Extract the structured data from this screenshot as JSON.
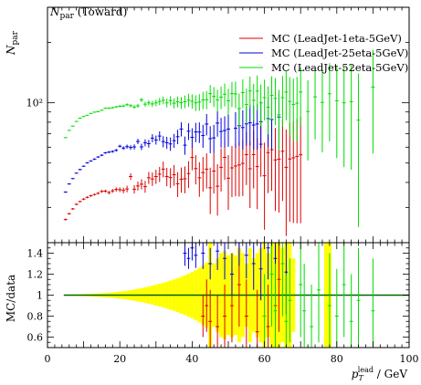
{
  "header": {
    "title_sym": "N",
    "title_sub": "par",
    "title_rest": " (Toward)"
  },
  "colors": {
    "mc1": "#dd0000",
    "mc2": "#0000dd",
    "mc3": "#00dd00",
    "band": "#ffff00",
    "unity": "#006600"
  },
  "chart_data": [
    {
      "type": "scatter",
      "panel": "main",
      "title": "N_par (Toward)",
      "ylabel": "N_par",
      "y_scale": "log",
      "ylim": [
        20,
        300
      ],
      "xlim": [
        0,
        100
      ],
      "y_tick_labels": [
        "10²"
      ],
      "y_major_ticks": [
        100
      ],
      "x": [
        5,
        6,
        7,
        8,
        9,
        10,
        11,
        12,
        13,
        14,
        15,
        16,
        17,
        18,
        19,
        20,
        21,
        22,
        23,
        24,
        25,
        26,
        27,
        28,
        29,
        30,
        31,
        32,
        33,
        34,
        35,
        36,
        37,
        38,
        39,
        40,
        41,
        42,
        43,
        44,
        45,
        46,
        47,
        48,
        49,
        50,
        51,
        52,
        53,
        54,
        55,
        56,
        57,
        58,
        59,
        60,
        61,
        62,
        63,
        64,
        65,
        66,
        67,
        68,
        69,
        70,
        72,
        74,
        76,
        78,
        80,
        82,
        84,
        86,
        90
      ],
      "series": [
        {
          "name": "MC (LeadJet-1eta-5GeV)",
          "color": "#dd0000",
          "values": [
            26.1,
            27.9,
            29.5,
            31.1,
            32.1,
            33.0,
            33.7,
            34.3,
            34.8,
            35.3,
            36.1,
            36.2,
            35.6,
            36.3,
            36.9,
            36.8,
            36.5,
            37.1,
            42.8,
            37.0,
            38.4,
            39.2,
            38.1,
            42.2,
            41.6,
            42.8,
            44.0,
            46.6,
            42.8,
            42.3,
            43.7,
            39.4,
            41.5,
            41.7,
            44.3,
            53.3,
            46.9,
            42.2,
            44.8,
            46.6,
            37.6,
            45.6,
            38.3,
            47.6,
            53.4,
            42.0,
            47.3,
            48.3,
            48.9,
            49.8,
            55.1,
            46.8,
            55.1,
            48.0,
            62.1,
            43.2,
            56.4,
            58.3,
            51.8,
            52.3,
            57.3,
            47.6,
            52.4,
            53.1,
            54.0,
            55.0,
            null,
            null,
            null,
            null,
            null,
            null,
            null,
            null,
            null
          ],
          "errors": [
            0.3,
            0.3,
            0.3,
            0.3,
            0.3,
            0.4,
            0.4,
            0.4,
            0.4,
            0.5,
            0.6,
            0.6,
            0.7,
            0.8,
            0.9,
            1.0,
            1.2,
            1.4,
            1.6,
            1.8,
            2.0,
            2.3,
            2.6,
            2.9,
            3.2,
            3.5,
            3.8,
            4.2,
            4.5,
            4.8,
            5.2,
            5.6,
            6.0,
            6.4,
            6.8,
            7.3,
            7.8,
            8.3,
            8.8,
            9.3,
            9.8,
            10.4,
            11.0,
            11.6,
            12.2,
            12.8,
            13.5,
            14.2,
            14.9,
            15.6,
            16.3,
            17.0,
            17.8,
            18.6,
            19.4,
            20.0,
            21.0,
            22.0,
            23.0,
            24.0,
            25.0,
            26.0,
            27.0,
            28.0,
            29.0,
            30.0,
            null,
            null,
            null,
            null,
            null,
            null,
            null,
            null,
            null
          ]
        },
        {
          "name": "MC (LeadJet-25eta-5GeV)",
          "color": "#0000dd",
          "values": [
            35.8,
            39.3,
            41.8,
            44.5,
            46.4,
            48.2,
            50.1,
            51.2,
            52.3,
            53.6,
            54.7,
            56.2,
            56.7,
            57.1,
            57.9,
            60.7,
            59.4,
            60.4,
            59.8,
            60.2,
            64.1,
            60.2,
            63.1,
            62.5,
            66.6,
            65.2,
            68.2,
            64.0,
            63.2,
            62.3,
            64.7,
            67.7,
            73.9,
            61.4,
            72.1,
            67.2,
            71.5,
            71.4,
            68.6,
            78.3,
            66.2,
            66.8,
            79.2,
            71.9,
            72.7,
            73.9,
            null,
            74.6,
            76.8,
            75.2,
            78.5,
            79.4,
            77.4,
            78.4,
            80.5,
            null,
            83.4,
            82.5,
            null,
            84.9,
            null,
            null,
            null,
            null,
            null,
            null,
            null,
            null,
            null,
            null,
            null,
            null,
            null,
            null,
            null
          ],
          "errors": [
            0.3,
            0.3,
            0.3,
            0.3,
            0.4,
            0.4,
            0.4,
            0.4,
            0.5,
            0.5,
            0.6,
            0.6,
            0.7,
            0.8,
            0.9,
            1.0,
            1.2,
            1.4,
            1.6,
            1.8,
            2.0,
            2.2,
            2.5,
            2.8,
            3.1,
            3.4,
            3.8,
            4.1,
            4.4,
            4.8,
            5.2,
            5.6,
            6.0,
            6.4,
            6.9,
            7.4,
            7.9,
            8.4,
            9.0,
            9.6,
            10.2,
            10.8,
            11.5,
            12.2,
            12.9,
            13.6,
            null,
            15.1,
            15.9,
            16.7,
            17.5,
            18.3,
            19.2,
            20.1,
            21.0,
            null,
            22.9,
            23.9,
            null,
            26.0,
            null,
            null,
            null,
            null,
            null,
            null,
            null,
            null,
            null,
            null,
            null,
            null,
            null,
            null,
            null
          ]
        },
        {
          "name": "MC (LeadJet-52eta-5GeV)",
          "color": "#00dd00",
          "values": [
            67.0,
            72.8,
            76.5,
            80.7,
            83.8,
            85.4,
            86.6,
            88.5,
            89.8,
            90.3,
            91.8,
            93.9,
            94.0,
            94.4,
            95.4,
            96.1,
            96.4,
            97.8,
            96.7,
            95.3,
            96.6,
            103.4,
            98.4,
            99.9,
            98.7,
            99.9,
            101.5,
            102.9,
            99.9,
            102.6,
            99.5,
            101.1,
            100.0,
            101.3,
            103.1,
            101.8,
            100.0,
            100.8,
            103.2,
            103.7,
            111.1,
            107.6,
            103.2,
            106.7,
            110.4,
            102.4,
            111.2,
            110.7,
            93.6,
            112.4,
            98.0,
            114.6,
            102.9,
            114.4,
            99.9,
            106.1,
            95.1,
            108.9,
            105.1,
            87.1,
            106.1,
            113.2,
            101.6,
            98.0,
            99.6,
            113.2,
            90.5,
            107.0,
            100.5,
            110.9,
            102.4,
            100.0,
            101.4,
            81.9,
            119.8
          ],
          "errors": [
            0.4,
            0.4,
            0.4,
            0.5,
            0.5,
            0.5,
            0.5,
            0.6,
            0.6,
            0.7,
            0.7,
            0.8,
            0.9,
            1.0,
            1.1,
            1.2,
            1.4,
            1.6,
            1.8,
            2.0,
            2.3,
            2.5,
            2.8,
            3.1,
            3.4,
            3.8,
            4.2,
            4.6,
            5.0,
            5.4,
            5.8,
            6.3,
            6.8,
            7.3,
            7.8,
            8.4,
            9.0,
            9.6,
            10.2,
            10.8,
            11.5,
            12.2,
            12.9,
            13.6,
            14.4,
            15.2,
            16.0,
            16.8,
            17.7,
            18.6,
            19.5,
            20.5,
            21.5,
            22.5,
            23.5,
            24.5,
            25.6,
            26.7,
            27.8,
            29.0,
            30.2,
            31.4,
            32.6,
            33.9,
            35.2,
            36.5,
            39.0,
            41.5,
            44.0,
            46.7,
            49.5,
            52.3,
            55.1,
            58.0,
            64.0
          ]
        }
      ],
      "legend": {
        "placement": "top-right",
        "entries": [
          "MC (LeadJet-1eta-5GeV)",
          "MC (LeadJet-25eta-5GeV)",
          "MC (LeadJet-52eta-5GeV)"
        ]
      }
    },
    {
      "type": "scatter",
      "panel": "ratio",
      "ylabel": "MC/data",
      "xlabel": "p_T^lead / GeV",
      "xlabel_sym": "p",
      "xlabel_sub": "T",
      "xlabel_sup": "lead",
      "xlabel_unit": " / GeV",
      "xlim": [
        0,
        100
      ],
      "ylim": [
        0.5,
        1.5
      ],
      "x_tick_labels": [
        "0",
        "20",
        "40",
        "60",
        "80",
        "100"
      ],
      "x_ticks": [
        0,
        20,
        40,
        60,
        80,
        100
      ],
      "y_tick_labels": [
        "0.6",
        "0.8",
        "1",
        "1.2",
        "1.4"
      ],
      "y_ticks": [
        0.6,
        0.8,
        1.0,
        1.2,
        1.4
      ],
      "reference_line": 1.0,
      "band": {
        "x": [
          5,
          6,
          7,
          8,
          9,
          10,
          11,
          12,
          13,
          14,
          15,
          16,
          17,
          18,
          19,
          20,
          21,
          22,
          23,
          24,
          25,
          26,
          27,
          28,
          29,
          30,
          31,
          32,
          33,
          34,
          35,
          36,
          37,
          38,
          39,
          40,
          41,
          42,
          43,
          44,
          45,
          46,
          47,
          48,
          49,
          50,
          51,
          52,
          53,
          54,
          55,
          56,
          57,
          58,
          59,
          60,
          61,
          62,
          63,
          64,
          65,
          66,
          67,
          68,
          69,
          70,
          71,
          72,
          73,
          74,
          75,
          76,
          77,
          78,
          79,
          80,
          81,
          82,
          83,
          84,
          85,
          86,
          87,
          88,
          89,
          90,
          91,
          92,
          93,
          94,
          95,
          96,
          97,
          98,
          99
        ],
        "half_width": [
          0.004,
          0.005,
          0.006,
          0.007,
          0.008,
          0.009,
          0.01,
          0.012,
          0.014,
          0.016,
          0.018,
          0.02,
          0.023,
          0.026,
          0.03,
          0.034,
          0.038,
          0.043,
          0.048,
          0.054,
          0.06,
          0.067,
          0.074,
          0.082,
          0.09,
          0.099,
          0.108,
          0.118,
          0.128,
          0.139,
          0.15,
          0.162,
          0.175,
          0.189,
          0.204,
          0.22,
          0.237,
          0.26,
          0.285,
          0.31,
          0.5,
          0.3,
          0.35,
          0.4,
          0.42,
          0.38,
          0.4,
          0.38,
          0.45,
          0.4,
          0.3,
          0.45,
          0.35,
          0.4,
          0.45,
          0.5,
          0.4,
          0.5,
          0.5,
          0.5,
          0.45,
          0.5,
          0.5,
          0.35,
          0.0,
          0.0,
          0.0,
          0.0,
          0.0,
          0.0,
          0.0,
          0.0,
          0.5,
          0.5,
          0.0,
          0.0,
          0.0,
          0.0,
          0.0,
          0.0,
          0.0,
          0.0,
          0.0,
          0.0,
          0.0,
          0.0,
          0.0,
          0.0,
          0.0,
          0.0,
          0.0,
          0.0,
          0.0,
          0.0,
          0.0
        ]
      },
      "series": [
        {
          "name": "MC (LeadJet-1eta-5GeV)",
          "color": "#dd0000",
          "x": [
            43,
            44,
            45,
            47,
            49,
            51,
            53,
            55,
            58,
            61,
            63,
            64
          ],
          "values": [
            0.8,
            0.9,
            0.75,
            0.7,
            0.8,
            0.9,
            1.1,
            0.8,
            0.65,
            0.7,
            0.9,
            1.15
          ],
          "errors": [
            0.2,
            0.25,
            0.3,
            0.3,
            0.3,
            0.35,
            0.4,
            0.35,
            0.4,
            0.4,
            0.45,
            0.5
          ]
        },
        {
          "name": "MC (LeadJet-25eta-5GeV)",
          "color": "#0000dd",
          "x": [
            38,
            39,
            40,
            41,
            43,
            45,
            47,
            49,
            51,
            53,
            55,
            57,
            59,
            61,
            63,
            66
          ],
          "values": [
            1.4,
            1.35,
            1.45,
            1.38,
            1.4,
            1.3,
            1.42,
            1.35,
            1.2,
            1.5,
            1.38,
            1.3,
            1.25,
            1.45,
            1.35,
            1.22
          ],
          "errors": [
            0.12,
            0.1,
            0.12,
            0.12,
            0.15,
            0.15,
            0.18,
            0.2,
            0.2,
            0.22,
            0.22,
            0.25,
            0.3,
            0.3,
            0.35,
            0.4
          ]
        },
        {
          "name": "MC (LeadJet-52eta-5GeV)",
          "color": "#00dd00",
          "x": [
            60,
            62,
            63,
            65,
            66,
            67,
            70,
            71,
            73,
            75,
            78,
            80,
            82,
            84,
            86,
            90
          ],
          "values": [
            0.8,
            1.2,
            0.85,
            1.3,
            0.75,
            0.95,
            1.1,
            0.85,
            0.7,
            1.05,
            0.9,
            0.8,
            1.1,
            0.75,
            0.95,
            0.85
          ],
          "errors": [
            0.4,
            0.5,
            0.45,
            0.5,
            0.45,
            0.4,
            0.5,
            0.45,
            0.4,
            0.5,
            0.5,
            0.45,
            0.5,
            0.45,
            0.5,
            0.5
          ]
        }
      ]
    }
  ]
}
